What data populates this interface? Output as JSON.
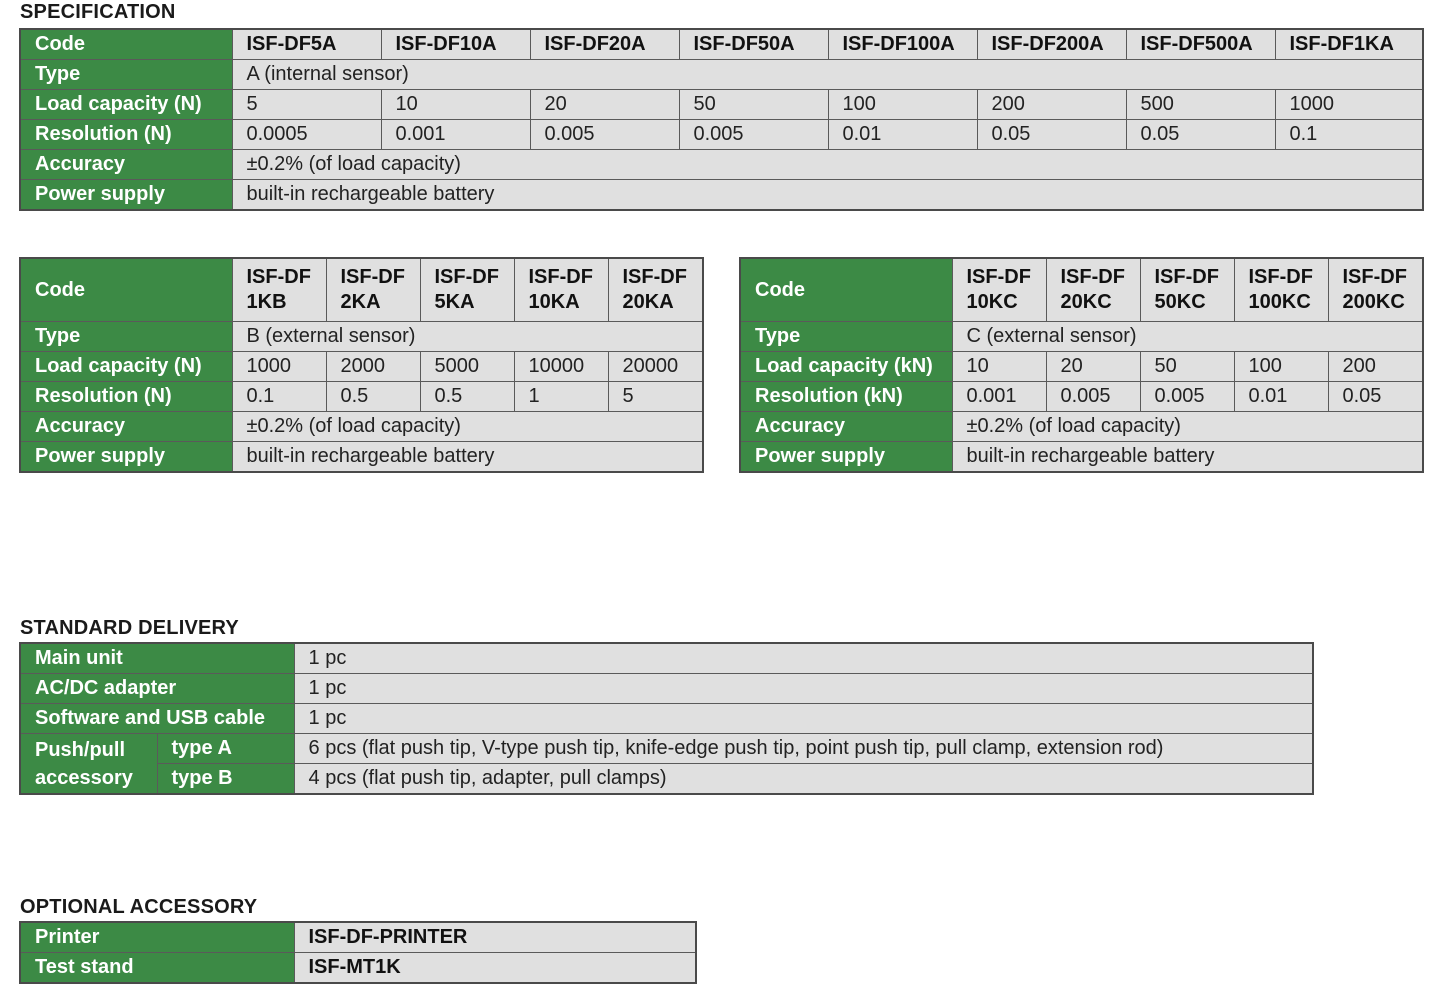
{
  "specification": {
    "title": "SPECIFICATION",
    "table_a": {
      "labels": [
        "Code",
        "Type",
        "Load capacity (N)",
        "Resolution (N)",
        "Accuracy",
        "Power supply"
      ],
      "codes": [
        "ISF-DF5A",
        "ISF-DF10A",
        "ISF-DF20A",
        "ISF-DF50A",
        "ISF-DF100A",
        "ISF-DF200A",
        "ISF-DF500A",
        "ISF-DF1KA"
      ],
      "type": "A (internal sensor)",
      "load": [
        "5",
        "10",
        "20",
        "50",
        "100",
        "200",
        "500",
        "1000"
      ],
      "resolution": [
        "0.0005",
        "0.001",
        "0.005",
        "0.005",
        "0.01",
        "0.05",
        "0.05",
        "0.1"
      ],
      "accuracy": "±0.2% (of load capacity)",
      "power": "built-in rechargeable battery"
    },
    "table_b": {
      "labels": [
        "Code",
        "Type",
        "Load capacity (N)",
        "Resolution (N)",
        "Accuracy",
        "Power supply"
      ],
      "codes": [
        {
          "l1": "ISF-DF",
          "l2": "1KB"
        },
        {
          "l1": "ISF-DF",
          "l2": "2KA"
        },
        {
          "l1": "ISF-DF",
          "l2": "5KA"
        },
        {
          "l1": "ISF-DF",
          "l2": "10KA"
        },
        {
          "l1": "ISF-DF",
          "l2": "20KA"
        }
      ],
      "type": "B (external sensor)",
      "load": [
        "1000",
        "2000",
        "5000",
        "10000",
        "20000"
      ],
      "resolution": [
        "0.1",
        "0.5",
        "0.5",
        "1",
        "5"
      ],
      "accuracy": "±0.2% (of load capacity)",
      "power": "built-in rechargeable battery"
    },
    "table_c": {
      "labels": [
        "Code",
        "Type",
        "Load capacity (kN)",
        "Resolution (kN)",
        "Accuracy",
        "Power supply"
      ],
      "codes": [
        {
          "l1": "ISF-DF",
          "l2": "10KC"
        },
        {
          "l1": "ISF-DF",
          "l2": "20KC"
        },
        {
          "l1": "ISF-DF",
          "l2": "50KC"
        },
        {
          "l1": "ISF-DF",
          "l2": "100KC"
        },
        {
          "l1": "ISF-DF",
          "l2": "200KC"
        }
      ],
      "type": "C (external sensor)",
      "load": [
        "10",
        "20",
        "50",
        "100",
        "200"
      ],
      "resolution": [
        "0.001",
        "0.005",
        "0.005",
        "0.01",
        "0.05"
      ],
      "accuracy": "±0.2% (of load capacity)",
      "power": "built-in rechargeable battery"
    }
  },
  "standard_delivery": {
    "title": "STANDARD DELIVERY",
    "rows": [
      {
        "label": "Main unit",
        "value": "1 pc"
      },
      {
        "label": "AC/DC adapter",
        "value": "1 pc"
      },
      {
        "label": "Software and USB cable",
        "value": "1 pc"
      }
    ],
    "accessory": {
      "label_l1": "Push/pull",
      "label_l2": "accessory",
      "type_a_label": "type A",
      "type_a_value": "6 pcs (flat push tip, V-type push tip, knife-edge push tip, point push tip, pull clamp, extension rod)",
      "type_b_label": "type B",
      "type_b_value": "4 pcs (flat push tip, adapter, pull clamps)"
    }
  },
  "optional_accessory": {
    "title": "OPTIONAL ACCESSORY",
    "rows": [
      {
        "label": "Printer",
        "value": "ISF-DF-PRINTER"
      },
      {
        "label": "Test stand",
        "value": "ISF-MT1K"
      }
    ]
  },
  "colors": {
    "label_green": "#3c8a45",
    "cell_gray": "#e0e0e0",
    "border": "#5a5a5a"
  }
}
